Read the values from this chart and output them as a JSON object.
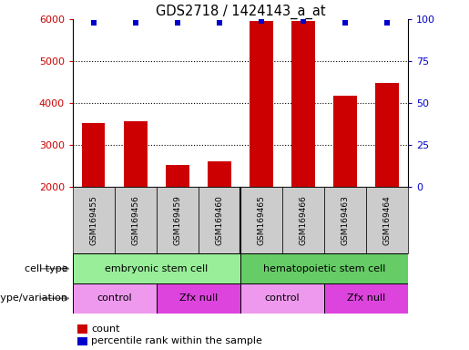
{
  "title": "GDS2718 / 1424143_a_at",
  "samples": [
    "GSM169455",
    "GSM169456",
    "GSM169459",
    "GSM169460",
    "GSM169465",
    "GSM169466",
    "GSM169463",
    "GSM169464"
  ],
  "counts": [
    3530,
    3580,
    2520,
    2620,
    5950,
    5950,
    4180,
    4480
  ],
  "percentile_ranks": [
    98,
    98,
    98,
    98,
    99,
    99,
    98,
    98
  ],
  "ylim_left": [
    2000,
    6000
  ],
  "ylim_right": [
    0,
    100
  ],
  "yticks_left": [
    2000,
    3000,
    4000,
    5000,
    6000
  ],
  "yticks_right": [
    0,
    25,
    50,
    75,
    100
  ],
  "bar_color": "#cc0000",
  "dot_color": "#0000cc",
  "cell_type_labels": [
    "embryonic stem cell",
    "hematopoietic stem cell"
  ],
  "cell_type_ranges": [
    [
      0,
      4
    ],
    [
      4,
      8
    ]
  ],
  "cell_type_color": "#99ee99",
  "cell_type_color2": "#66cc66",
  "genotype_labels": [
    "control",
    "Zfx null",
    "control",
    "Zfx null"
  ],
  "genotype_ranges": [
    [
      0,
      2
    ],
    [
      2,
      4
    ],
    [
      4,
      6
    ],
    [
      6,
      8
    ]
  ],
  "genotype_color_control": "#ee99ee",
  "genotype_color_zfx": "#dd44dd",
  "legend_count_color": "#cc0000",
  "legend_dot_color": "#0000cc",
  "xlabel_cell_type": "cell type",
  "xlabel_genotype": "genotype/variation",
  "background_color": "#ffffff",
  "tick_label_color_left": "#cc0000",
  "tick_label_color_right": "#0000cc",
  "sample_bg_color": "#cccccc"
}
